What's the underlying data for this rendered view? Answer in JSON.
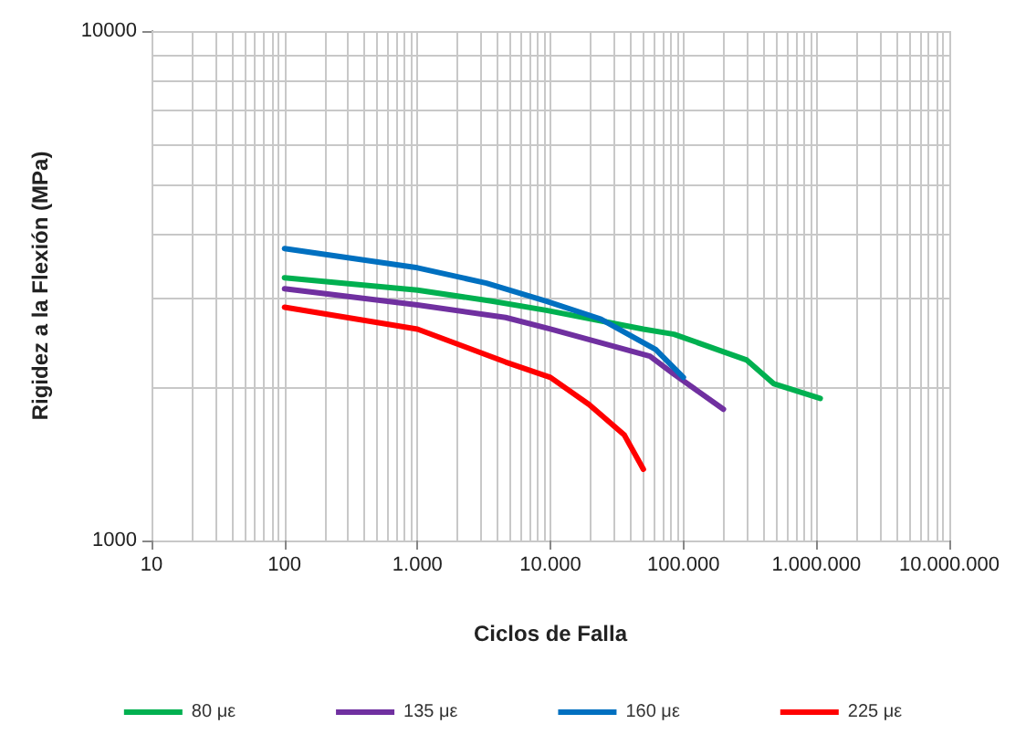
{
  "chart_data": {
    "type": "line",
    "xlabel": "Ciclos de Falla",
    "ylabel": "Rigidez a la Flexión (MPa)",
    "log": "xy",
    "grid": true,
    "legend": "bottom",
    "marker": "none",
    "line_style": "solid",
    "xlim": [
      10,
      10000000
    ],
    "ylim": [
      1000,
      10000
    ],
    "xticks": [
      {
        "value": 10,
        "label": "10"
      },
      {
        "value": 20,
        "label": null
      },
      {
        "value": 30,
        "label": null
      },
      {
        "value": 40,
        "label": null
      },
      {
        "value": 50,
        "label": null
      },
      {
        "value": 60,
        "label": null
      },
      {
        "value": 70,
        "label": null
      },
      {
        "value": 80,
        "label": null
      },
      {
        "value": 90,
        "label": null
      },
      {
        "value": 100,
        "label": "100"
      },
      {
        "value": 200,
        "label": null
      },
      {
        "value": 300,
        "label": null
      },
      {
        "value": 400,
        "label": null
      },
      {
        "value": 500,
        "label": null
      },
      {
        "value": 600,
        "label": null
      },
      {
        "value": 700,
        "label": null
      },
      {
        "value": 800,
        "label": null
      },
      {
        "value": 900,
        "label": null
      },
      {
        "value": 1000,
        "label": "1.000"
      },
      {
        "value": 2000,
        "label": null
      },
      {
        "value": 3000,
        "label": null
      },
      {
        "value": 4000,
        "label": null
      },
      {
        "value": 5000,
        "label": null
      },
      {
        "value": 6000,
        "label": null
      },
      {
        "value": 7000,
        "label": null
      },
      {
        "value": 8000,
        "label": null
      },
      {
        "value": 9000,
        "label": null
      },
      {
        "value": 10000,
        "label": "10.000"
      },
      {
        "value": 20000,
        "label": null
      },
      {
        "value": 30000,
        "label": null
      },
      {
        "value": 40000,
        "label": null
      },
      {
        "value": 50000,
        "label": null
      },
      {
        "value": 60000,
        "label": null
      },
      {
        "value": 70000,
        "label": null
      },
      {
        "value": 80000,
        "label": null
      },
      {
        "value": 90000,
        "label": null
      },
      {
        "value": 100000,
        "label": "100.000"
      },
      {
        "value": 200000,
        "label": null
      },
      {
        "value": 300000,
        "label": null
      },
      {
        "value": 400000,
        "label": null
      },
      {
        "value": 500000,
        "label": null
      },
      {
        "value": 600000,
        "label": null
      },
      {
        "value": 700000,
        "label": null
      },
      {
        "value": 800000,
        "label": null
      },
      {
        "value": 900000,
        "label": null
      },
      {
        "value": 1000000,
        "label": "1.000.000"
      },
      {
        "value": 2000000,
        "label": null
      },
      {
        "value": 3000000,
        "label": null
      },
      {
        "value": 4000000,
        "label": null
      },
      {
        "value": 5000000,
        "label": null
      },
      {
        "value": 6000000,
        "label": null
      },
      {
        "value": 7000000,
        "label": null
      },
      {
        "value": 8000000,
        "label": null
      },
      {
        "value": 9000000,
        "label": null
      },
      {
        "value": 10000000,
        "label": "10.000.000"
      }
    ],
    "yticks": [
      1000,
      {
        "value": 2000,
        "label": null
      },
      {
        "value": 3000,
        "label": null
      },
      {
        "value": 4000,
        "label": null
      },
      {
        "value": 5000,
        "label": null
      },
      {
        "value": 6000,
        "label": null
      },
      {
        "value": 7000,
        "label": null
      },
      {
        "value": 8000,
        "label": null
      },
      {
        "value": 9000,
        "label": null
      },
      10000
    ],
    "series": [
      {
        "name": "80 με",
        "color": "#00b050",
        "x": [
          100,
          1000,
          3600,
          9300,
          50000,
          85000,
          300000,
          480000,
          1070000
        ],
        "values": [
          3280,
          3100,
          2950,
          2830,
          2600,
          2540,
          2260,
          2030,
          1900
        ]
      },
      {
        "name": "135 με",
        "color": "#7030a0",
        "x": [
          100,
          1000,
          4600,
          10000,
          56000,
          85000,
          200000
        ],
        "values": [
          3120,
          2900,
          2740,
          2600,
          2300,
          2120,
          1810
        ]
      },
      {
        "name": "160 με",
        "color": "#0070c0",
        "x": [
          100,
          1000,
          3300,
          9300,
          24000,
          62000,
          100000
        ],
        "values": [
          3740,
          3430,
          3200,
          2950,
          2720,
          2370,
          2090
        ]
      },
      {
        "name": "225 με",
        "color": "#ff0000",
        "x": [
          100,
          1000,
          4600,
          10000,
          19500,
          36000,
          50000
        ],
        "values": [
          2870,
          2600,
          2240,
          2090,
          1850,
          1610,
          1380
        ]
      }
    ]
  }
}
